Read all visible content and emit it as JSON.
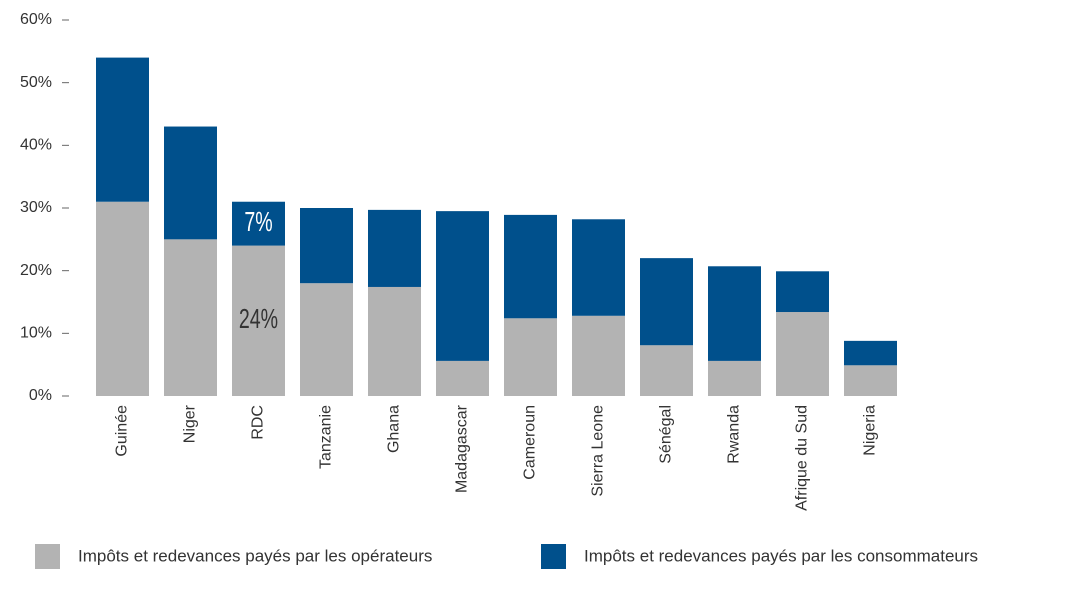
{
  "chart_data": {
    "type": "stacked_bar",
    "categories": [
      "Guinée",
      "Niger",
      "RDC",
      "Tanzanie",
      "Ghana",
      "Madagascar",
      "Cameroun",
      "Sierra Leone",
      "Sénégal",
      "Rwanda",
      "Afrique du Sud",
      "Nigeria"
    ],
    "series": [
      {
        "name": "Impôts et redevances payés par les opérateurs",
        "color": "#b3b3b3",
        "values": [
          31,
          25,
          24,
          18,
          17.4,
          5.6,
          12.4,
          12.8,
          8.1,
          5.6,
          13.4,
          4.9
        ],
        "value_labels": [
          null,
          null,
          "24%",
          null,
          null,
          null,
          null,
          null,
          null,
          null,
          null,
          null
        ]
      },
      {
        "name": "Impôts et redevances payés par les consommateurs",
        "color": "#00508c",
        "values": [
          23,
          18,
          7,
          12,
          12.3,
          23.9,
          16.5,
          15.4,
          13.9,
          15.1,
          6.5,
          3.9
        ],
        "value_labels": [
          null,
          null,
          "7%",
          null,
          null,
          null,
          null,
          null,
          null,
          null,
          null,
          null
        ]
      }
    ],
    "ylim": [
      0,
      60
    ],
    "yticks": [
      {
        "value": 0,
        "label": "0%"
      },
      {
        "value": 10,
        "label": "10%"
      },
      {
        "value": 20,
        "label": "20%"
      },
      {
        "value": 30,
        "label": "30%"
      },
      {
        "value": 40,
        "label": "40%"
      },
      {
        "value": 50,
        "label": "50%"
      },
      {
        "value": 60,
        "label": "60%"
      }
    ]
  }
}
